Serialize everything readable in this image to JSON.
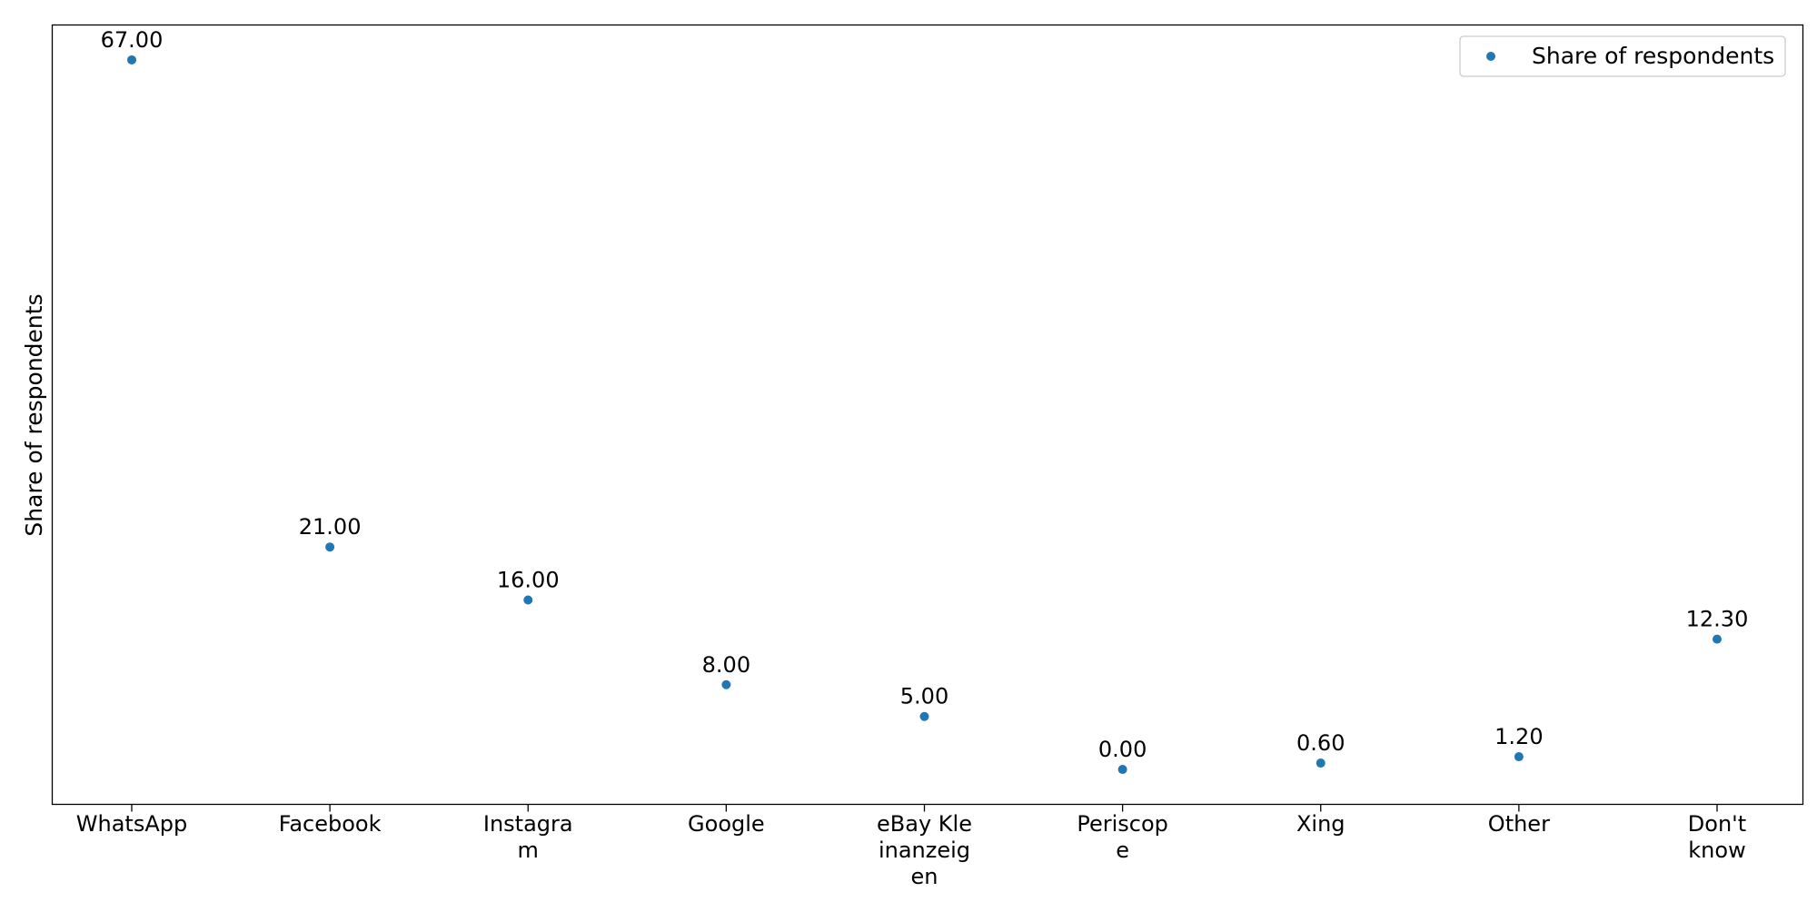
{
  "chart_data": {
    "type": "scatter",
    "title": "",
    "xlabel": "",
    "ylabel": "Share of respondents",
    "categories": [
      [
        "WhatsApp"
      ],
      [
        "Facebook"
      ],
      [
        "Instagra",
        "m"
      ],
      [
        "Google"
      ],
      [
        "eBay Kle",
        "inanzeig",
        "en"
      ],
      [
        "Periscop",
        "e"
      ],
      [
        "Xing"
      ],
      [
        "Other"
      ],
      [
        "Don't",
        "know"
      ]
    ],
    "series": [
      {
        "name": "Share of respondents",
        "values": [
          67.0,
          21.0,
          16.0,
          8.0,
          5.0,
          0.0,
          0.6,
          1.2,
          12.3
        ],
        "labels": [
          "67.00",
          "21.00",
          "16.00",
          "8.00",
          "5.00",
          "0.00",
          "0.60",
          "1.20",
          "12.30"
        ]
      }
    ],
    "ylim": [
      -3.3,
      70.3
    ],
    "grid": false,
    "legend_position": "top-right",
    "colors": {
      "series": "#1f77b4",
      "axes": "#000000",
      "background": "#ffffff"
    }
  }
}
